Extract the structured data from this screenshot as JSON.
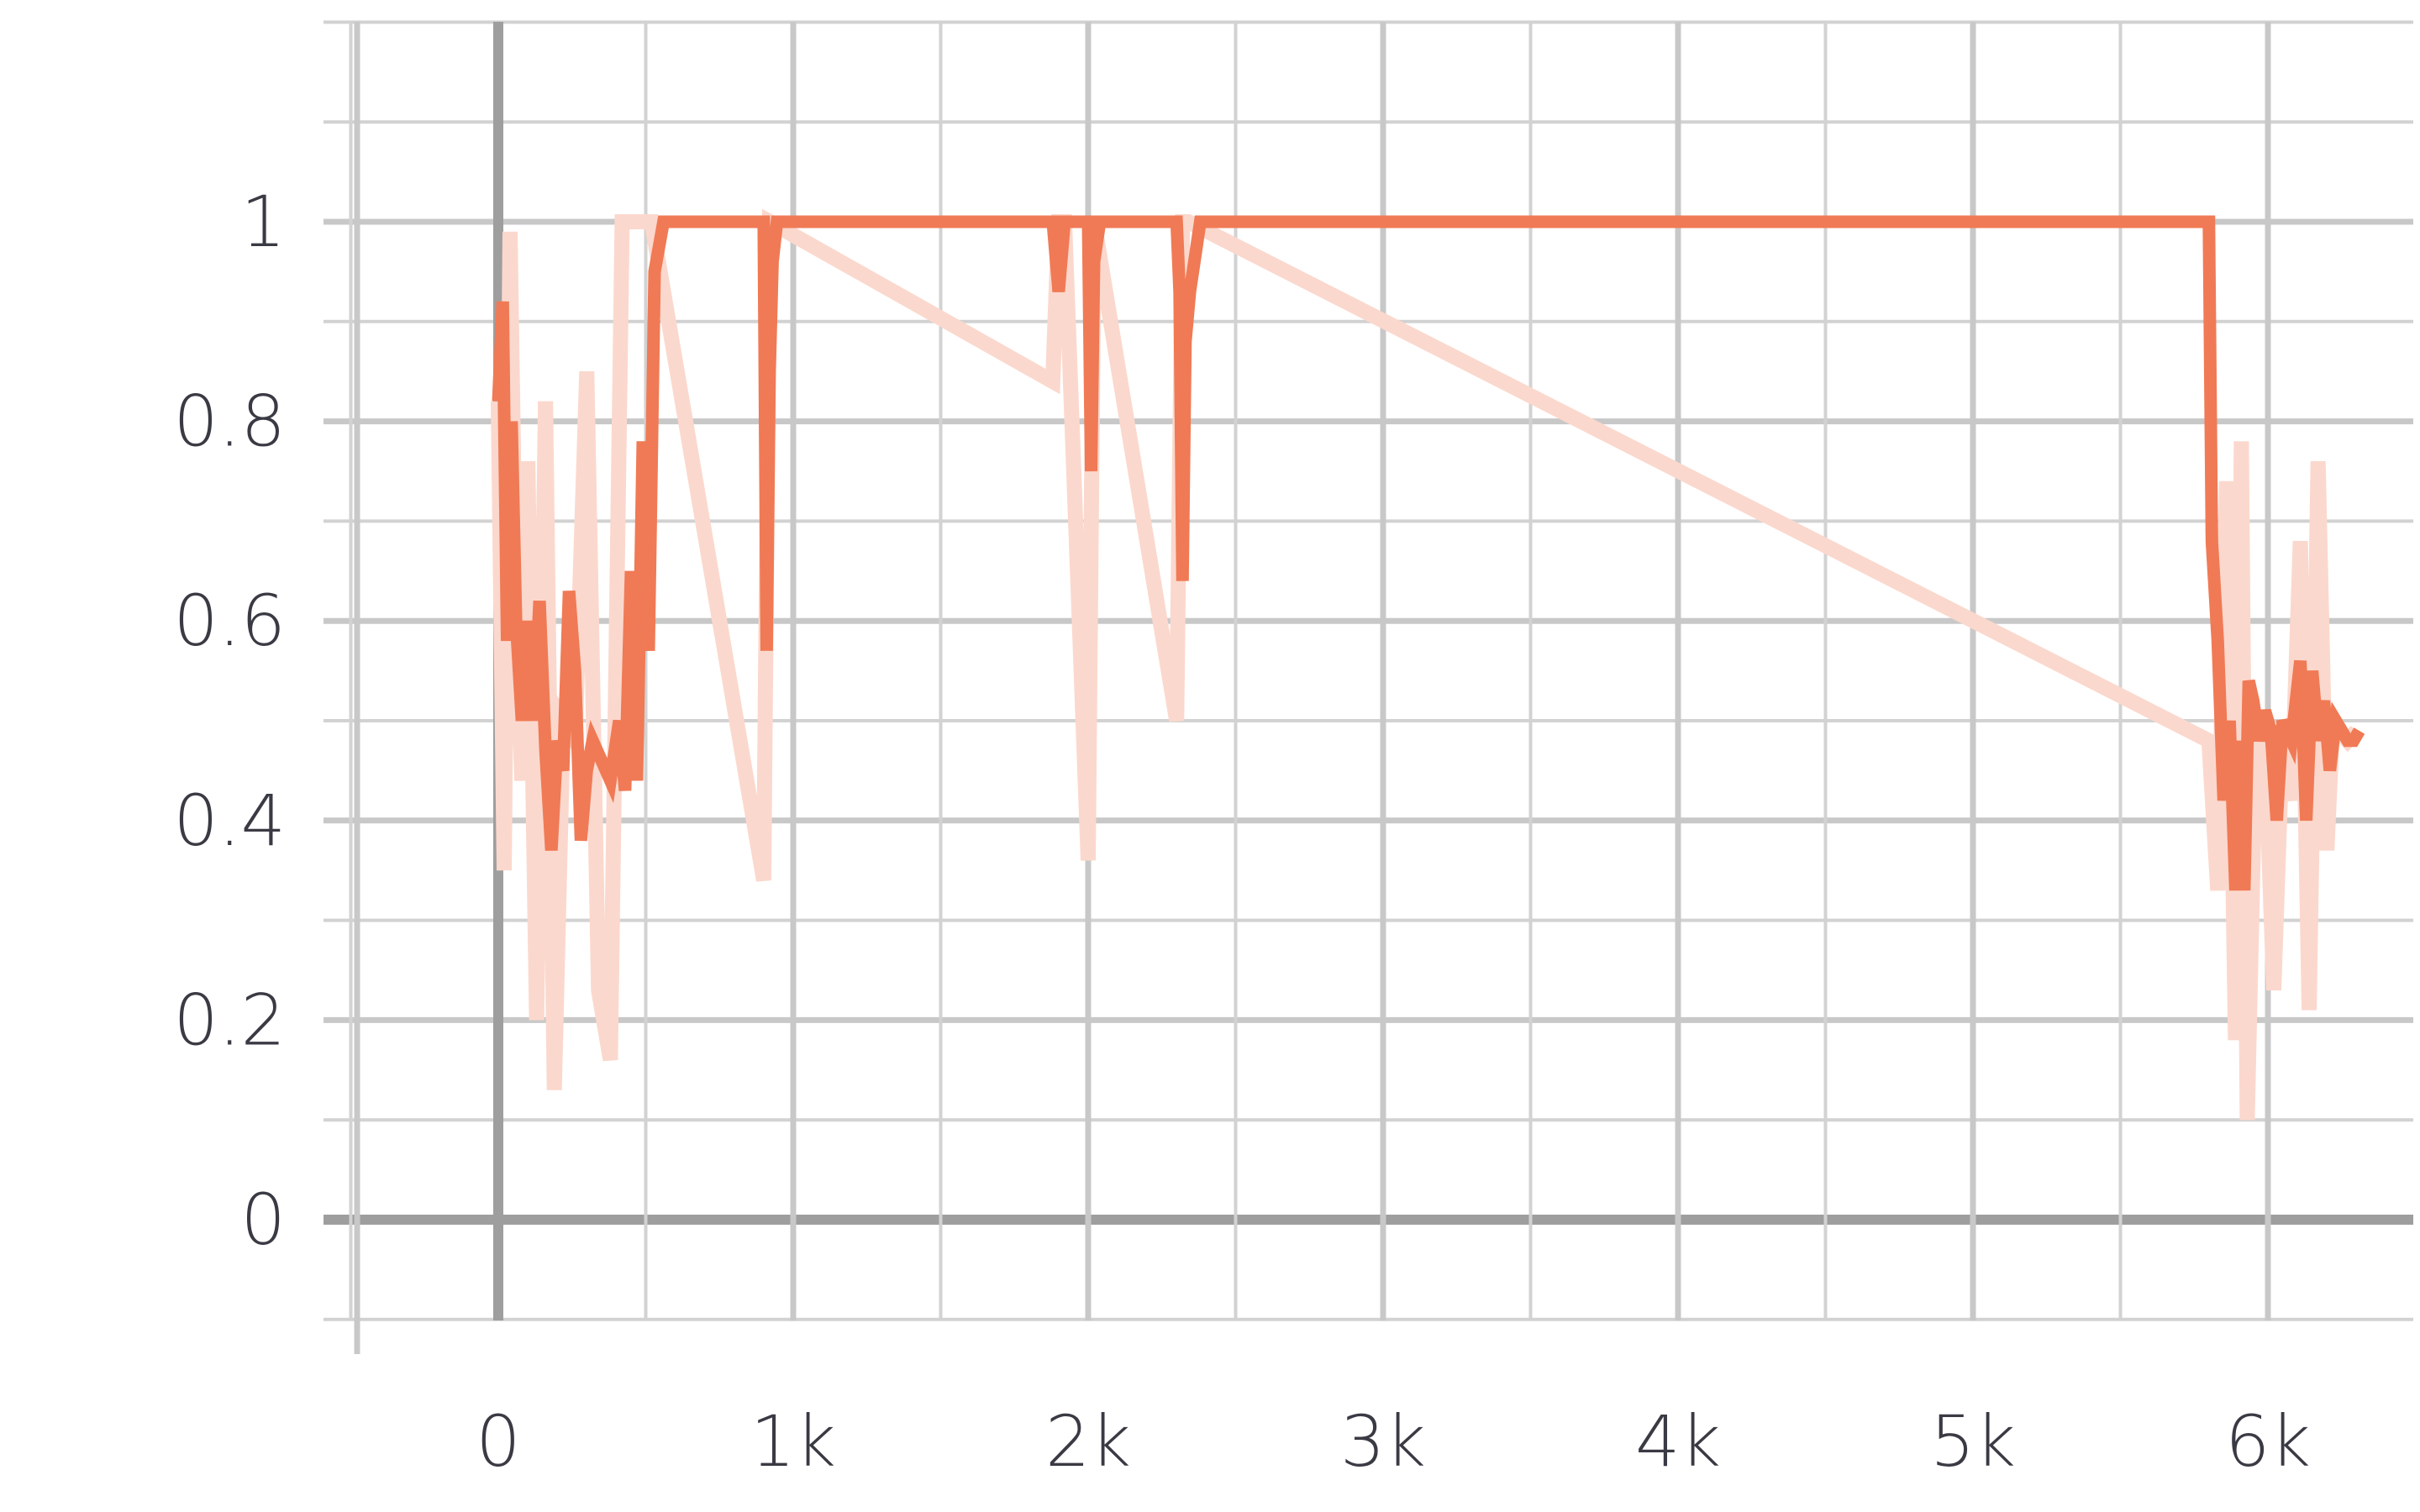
{
  "chart_data": {
    "type": "line",
    "title": "",
    "xlabel": "",
    "ylabel": "",
    "xlim": [
      -500,
      6500
    ],
    "ylim": [
      -0.1,
      1.2
    ],
    "grid": true,
    "x_ticks": [
      {
        "value": 0,
        "label": "0"
      },
      {
        "value": 1000,
        "label": "1k"
      },
      {
        "value": 2000,
        "label": "2k"
      },
      {
        "value": 3000,
        "label": "3k"
      },
      {
        "value": 4000,
        "label": "4k"
      },
      {
        "value": 5000,
        "label": "5k"
      },
      {
        "value": 6000,
        "label": "6k"
      }
    ],
    "y_ticks": [
      {
        "value": 0,
        "label": "0"
      },
      {
        "value": 0.2,
        "label": "0.2"
      },
      {
        "value": 0.4,
        "label": "0.4"
      },
      {
        "value": 0.6,
        "label": "0.6"
      },
      {
        "value": 0.8,
        "label": "0.8"
      },
      {
        "value": 1.0,
        "label": "1"
      }
    ],
    "colors": {
      "smoothed": "#f07a55",
      "raw": "#fbd8cd"
    },
    "series": [
      {
        "role": "raw",
        "x": [
          0,
          20,
          40,
          60,
          80,
          100,
          130,
          160,
          190,
          220,
          260,
          300,
          340,
          380,
          420,
          450,
          470,
          490,
          520,
          900,
          920,
          1880,
          1900,
          1920,
          2000,
          2020,
          2300,
          2320,
          2340,
          5800,
          5830,
          5860,
          5890,
          5910,
          5930,
          5960,
          5990,
          6020,
          6050,
          6080,
          6110,
          6140,
          6170,
          6200,
          6220,
          6240,
          6270,
          6300
        ],
        "y": [
          0.82,
          0.35,
          0.99,
          0.6,
          0.44,
          0.76,
          0.2,
          0.82,
          0.13,
          0.5,
          0.48,
          0.85,
          0.23,
          0.16,
          1.0,
          1.0,
          1.0,
          1.0,
          1.0,
          0.34,
          1.0,
          0.84,
          1.0,
          1.0,
          0.36,
          1.0,
          0.5,
          1.0,
          1.0,
          0.48,
          0.33,
          0.74,
          0.18,
          0.78,
          0.1,
          0.5,
          0.48,
          0.23,
          0.49,
          0.42,
          0.68,
          0.21,
          0.76,
          0.37,
          0.5,
          0.49,
          0.48,
          0.49
        ]
      },
      {
        "role": "smoothed",
        "x": [
          0,
          15,
          30,
          45,
          60,
          80,
          100,
          120,
          140,
          160,
          180,
          200,
          220,
          240,
          260,
          280,
          300,
          320,
          350,
          380,
          410,
          430,
          450,
          470,
          490,
          510,
          530,
          560,
          600,
          900,
          910,
          920,
          930,
          945,
          960,
          990,
          1880,
          1900,
          1920,
          1950,
          2000,
          2010,
          2020,
          2040,
          2060,
          2300,
          2310,
          2320,
          2330,
          2345,
          2360,
          2380,
          2420,
          5800,
          5810,
          5830,
          5850,
          5870,
          5890,
          5905,
          5920,
          5935,
          5950,
          5970,
          5990,
          6010,
          6030,
          6050,
          6080,
          6110,
          6130,
          6150,
          6170,
          6190,
          6210,
          6230,
          6250,
          6270,
          6290,
          6310
        ],
        "y": [
          0.82,
          0.92,
          0.58,
          0.8,
          0.6,
          0.5,
          0.6,
          0.5,
          0.62,
          0.47,
          0.37,
          0.48,
          0.45,
          0.63,
          0.55,
          0.38,
          0.45,
          0.48,
          0.46,
          0.44,
          0.5,
          0.43,
          0.65,
          0.44,
          0.78,
          0.57,
          0.95,
          1.0,
          1.0,
          1.0,
          0.57,
          0.85,
          0.96,
          1.0,
          1.0,
          1.0,
          1.0,
          0.93,
          1.0,
          1.0,
          1.0,
          0.75,
          0.96,
          1.0,
          1.0,
          1.0,
          0.93,
          0.64,
          0.88,
          0.93,
          0.96,
          1.0,
          1.0,
          1.0,
          0.68,
          0.58,
          0.42,
          0.5,
          0.33,
          0.48,
          0.33,
          0.54,
          0.52,
          0.48,
          0.51,
          0.49,
          0.4,
          0.5,
          0.48,
          0.56,
          0.4,
          0.55,
          0.48,
          0.52,
          0.45,
          0.5,
          0.49,
          0.48,
          0.48,
          0.49
        ]
      }
    ]
  }
}
